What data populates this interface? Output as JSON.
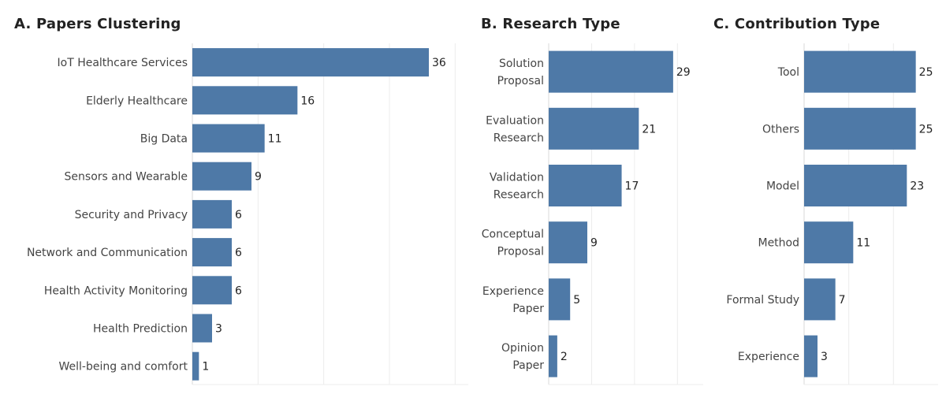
{
  "colors": {
    "bar": "#4e79a7",
    "grid": "#ececec",
    "axis": "#d8d8d8"
  },
  "chart_data": [
    {
      "type": "bar",
      "orientation": "horizontal",
      "title": "A. Papers Clustering",
      "categories": [
        "IoT Healthcare Services",
        "Elderly Healthcare",
        "Big Data",
        "Sensors and Wearable",
        "Security and Privacy",
        "Network and Communication",
        "Health Activity Monitoring",
        "Health Prediction",
        "Well-being and comfort"
      ],
      "values": [
        36,
        16,
        11,
        9,
        6,
        6,
        6,
        3,
        1
      ],
      "xlim": [
        0,
        42
      ],
      "grid": true
    },
    {
      "type": "bar",
      "orientation": "horizontal",
      "title": "B. Research Type",
      "categories": [
        [
          "Solution",
          "Proposal"
        ],
        [
          "Evaluation",
          "Research"
        ],
        [
          "Validation",
          "Research"
        ],
        [
          "Conceptual",
          "Proposal"
        ],
        [
          "Experience",
          "Paper"
        ],
        [
          "Opinion",
          "Paper"
        ]
      ],
      "values": [
        29,
        21,
        17,
        9,
        5,
        2
      ],
      "xlim": [
        0,
        36
      ],
      "grid": true
    },
    {
      "type": "bar",
      "orientation": "horizontal",
      "title": "C. Contribution Type",
      "categories": [
        "Tool",
        "Others",
        "Model",
        "Method",
        "Formal Study",
        "Experience"
      ],
      "values": [
        25,
        25,
        23,
        11,
        7,
        3
      ],
      "xlim": [
        0,
        30
      ],
      "grid": true
    }
  ]
}
